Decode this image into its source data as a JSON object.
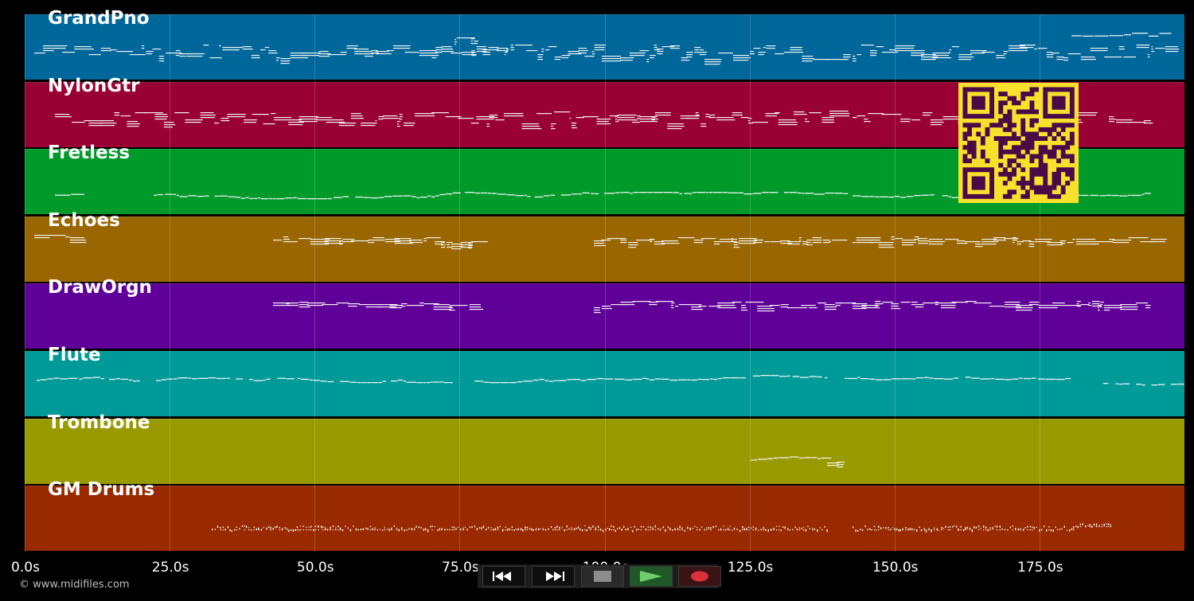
{
  "tracks": [
    {
      "name": "GrandPno",
      "color": "#00679a"
    },
    {
      "name": "NylonGtr",
      "color": "#990033"
    },
    {
      "name": "Fretless",
      "color": "#009a2a"
    },
    {
      "name": "Echoes",
      "color": "#996600"
    },
    {
      "name": "DrawOrgn",
      "color": "#5f0098"
    },
    {
      "name": "Flute",
      "color": "#009a98"
    },
    {
      "name": "Trombone",
      "color": "#999a00"
    },
    {
      "name": "GM Drums",
      "color": "#992a00"
    }
  ],
  "timeline": {
    "max_seconds": 200,
    "ticks": [
      "0.0s",
      "25.0s",
      "50.0s",
      "75.0s",
      "100.0s",
      "125.0s",
      "150.0s",
      "175.0s"
    ]
  },
  "copyright": "© www.midifiles.com",
  "transport": {
    "rewind_icon": "rewind-icon",
    "forward_icon": "fast-forward-icon",
    "stop_icon": "stop-icon",
    "play_icon": "play-icon",
    "record_icon": "record-icon"
  },
  "qr": {
    "color": "#f9e02d",
    "module_color": "#4b0a47"
  }
}
